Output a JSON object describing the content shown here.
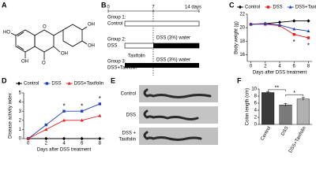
{
  "panels": [
    "A",
    "B",
    "C",
    "D",
    "E",
    "F"
  ],
  "structure": {
    "atoms": [
      "OH",
      "OH",
      "HO",
      "O",
      "OH",
      "OH",
      "O"
    ]
  },
  "timeline": {
    "ticks": [
      "0",
      "7",
      "14 days"
    ],
    "groups": [
      {
        "label": "Group 1:",
        "name": "Control"
      },
      {
        "label": "Group 2:",
        "name": "DSS",
        "bar": "DSS (3%) water"
      },
      {
        "label": "Group 3:",
        "name": "DSS+Taxifolin",
        "pre": "Taxifolin",
        "bar": "DSS (3%) water"
      }
    ]
  },
  "colon_images": {
    "labels": [
      "Control",
      "DSS",
      "DSS +",
      "Taxifolin"
    ]
  },
  "chart_data": [
    {
      "type": "line",
      "y_label": "Body weight (g)",
      "x_label": "Days after DSS treatment",
      "x": [
        0,
        2,
        4,
        6,
        8
      ],
      "xlim": [
        -0.5,
        8.5
      ],
      "xticks": [
        0,
        2,
        4,
        6,
        8
      ],
      "ylim": [
        15,
        22
      ],
      "yticks": [
        16,
        18,
        20,
        22
      ],
      "series": [
        {
          "name": "Control",
          "color": "#000000",
          "marker": "diamond",
          "values": [
            20.5,
            20.6,
            20.8,
            21,
            21
          ]
        },
        {
          "name": "DSS",
          "color": "#e41a1c",
          "marker": "square",
          "values": [
            20.5,
            20.5,
            20.3,
            19,
            18.5
          ]
        },
        {
          "name": "DSS+Taxifolin",
          "color": "#1f3fbf",
          "marker": "triangle",
          "values": [
            20.5,
            20.6,
            20.4,
            19.8,
            19.5
          ]
        }
      ],
      "annotations": [
        "*",
        "*"
      ]
    },
    {
      "type": "line",
      "y_label": "Disease activity index",
      "x_label": "Days after DSS treatment",
      "x": [
        0,
        2,
        4,
        6,
        8
      ],
      "xlim": [
        -0.5,
        8.5
      ],
      "xticks": [
        0,
        2,
        4,
        6,
        8
      ],
      "ylim": [
        0,
        5
      ],
      "yticks": [
        0,
        1,
        2,
        3,
        4,
        5
      ],
      "series": [
        {
          "name": "Control",
          "color": "#000000",
          "marker": "diamond",
          "values": [
            0,
            0,
            0,
            0,
            0
          ]
        },
        {
          "name": "DSS",
          "color": "#1f3fbf",
          "marker": "square",
          "values": [
            0,
            1.5,
            3,
            3,
            3.8
          ]
        },
        {
          "name": "DSS+Taxifolin",
          "color": "#e41a1c",
          "marker": "triangle",
          "values": [
            0,
            1,
            2,
            2,
            2.5
          ]
        }
      ],
      "annotations": [
        "*",
        "*",
        "*"
      ]
    },
    {
      "type": "bar",
      "y_label": "Colon length (cm)",
      "categories": [
        "Control",
        "DSS",
        "DSS+Taxifolin"
      ],
      "values": [
        9,
        5.5,
        7.2
      ],
      "errors": [
        0.2,
        0.4,
        0.4
      ],
      "colors": [
        "#3a3a3a",
        "#7a7a7a",
        "#b0b0b0"
      ],
      "ylim": [
        0,
        10
      ],
      "yticks": [
        0,
        2,
        4,
        6,
        8,
        10
      ],
      "annotations": [
        "**",
        "*"
      ]
    }
  ]
}
